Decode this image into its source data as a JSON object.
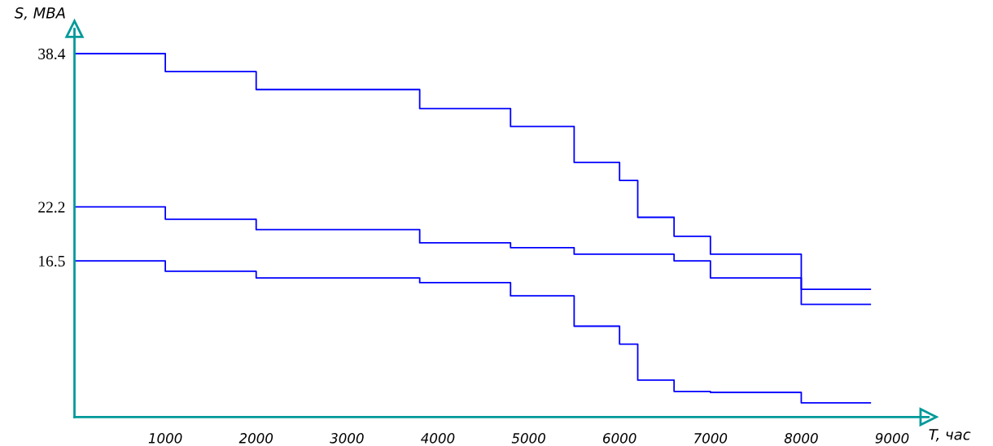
{
  "chart_data": {
    "type": "step",
    "xlabel": "T, час",
    "ylabel": "S, MBA",
    "xlim": [
      0,
      9400
    ],
    "ylim": [
      0,
      41
    ],
    "xticks": [
      1000,
      2000,
      3000,
      4000,
      5000,
      6000,
      7000,
      8000,
      9000
    ],
    "yticks": [
      16.5,
      22.2,
      38.4
    ],
    "grid": false,
    "legend": false,
    "series": [
      {
        "color": "#0000ff",
        "x": [
          0,
          1000,
          2000,
          3800,
          4800,
          5500,
          6000,
          6200,
          6600,
          7000,
          8000,
          8760
        ],
        "values": [
          38.4,
          36.5,
          34.6,
          32.6,
          30.7,
          26.9,
          25.0,
          21.1,
          19.1,
          17.2,
          13.5,
          13.5
        ]
      },
      {
        "color": "#0000ff",
        "x": [
          0,
          1000,
          2000,
          3800,
          4800,
          5500,
          6600,
          7000,
          8000,
          8760
        ],
        "values": [
          22.2,
          20.9,
          19.8,
          18.4,
          17.9,
          17.2,
          16.5,
          14.7,
          11.9,
          11.9
        ]
      },
      {
        "color": "#0000ff",
        "x": [
          0,
          1000,
          2000,
          3800,
          4800,
          5500,
          6000,
          6200,
          6600,
          7000,
          8000,
          8760
        ],
        "values": [
          16.5,
          15.4,
          14.7,
          14.2,
          12.8,
          9.6,
          7.7,
          3.9,
          2.7,
          2.6,
          1.5,
          1.5
        ]
      }
    ]
  }
}
